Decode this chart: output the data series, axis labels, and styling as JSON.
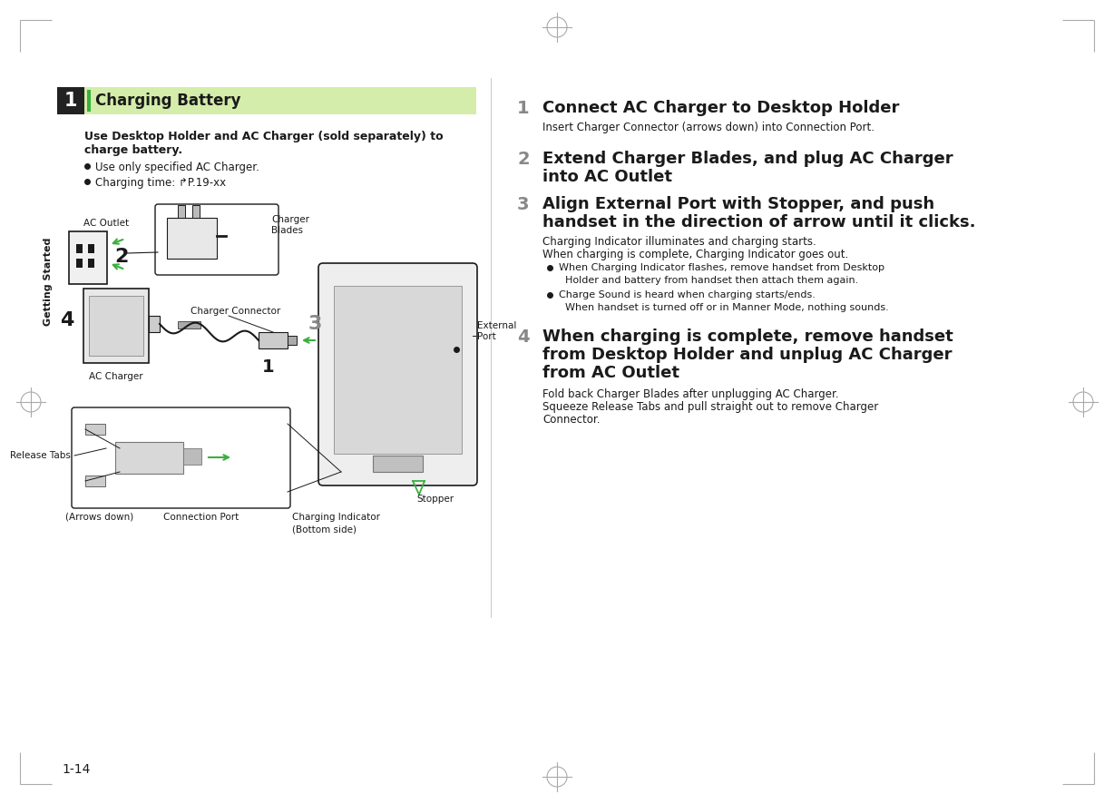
{
  "page_bg": "#ffffff",
  "title_bar_bg": "#d4edaa",
  "title_bar_green_stripe": "#4caf50",
  "title_number_bg": "#222222",
  "title_text": "Charging Battery",
  "section_num": "1",
  "sidebar_label": "Getting Started",
  "page_number": "1-14",
  "intro_bold_line1": "Use Desktop Holder and AC Charger (sold separately) to",
  "intro_bold_line2": "charge battery.",
  "bullet1": "Use only specified AC Charger.",
  "bullet2": "Charging time: ↱P.19-xx",
  "step1_num": "1",
  "step1_title": "Connect AC Charger to Desktop Holder",
  "step1_desc": "Insert Charger Connector (arrows down) into Connection Port.",
  "step2_num": "2",
  "step2_title_line1": "Extend Charger Blades, and plug AC Charger",
  "step2_title_line2": "into AC Outlet",
  "step3_num": "3",
  "step3_title_line1": "Align External Port with Stopper, and push",
  "step3_title_line2": "handset in the direction of arrow until it clicks.",
  "step3_desc1": "Charging Indicator illuminates and charging starts.",
  "step3_desc2": "When charging is complete, Charging Indicator goes out.",
  "step3_b1_line1": "When Charging Indicator flashes, remove handset from Desktop",
  "step3_b1_line2": "Holder and battery from handset then attach them again.",
  "step3_b2_line1": "Charge Sound is heard when charging starts/ends.",
  "step3_b2_line2": "When handset is turned off or in Manner Mode, nothing sounds.",
  "step4_num": "4",
  "step4_title_line1": "When charging is complete, remove handset",
  "step4_title_line2": "from Desktop Holder and unplug AC Charger",
  "step4_title_line3": "from AC Outlet",
  "step4_desc1": "Fold back Charger Blades after unplugging AC Charger.",
  "step4_desc2": "Squeeze Release Tabs and pull straight out to remove Charger",
  "step4_desc3": "Connector.",
  "lbl_ac_outlet": "AC Outlet",
  "lbl_charger_blades": "Charger\nBlades",
  "lbl_charger_connector": "Charger Connector",
  "lbl_ac_charger": "AC Charger",
  "lbl_external_port": "External\nPort",
  "lbl_release_tabs": "Release Tabs",
  "lbl_arrows_down": "(Arrows down)",
  "lbl_connection_port": "Connection Port",
  "lbl_charging_indicator": "Charging Indicator",
  "lbl_bottom_side": "(Bottom side)",
  "lbl_stopper": "Stopper",
  "green": "#3ab03e",
  "black": "#1a1a1a",
  "gray_num": "#888888",
  "divider_color": "#cccccc",
  "corner_color": "#aaaaaa"
}
